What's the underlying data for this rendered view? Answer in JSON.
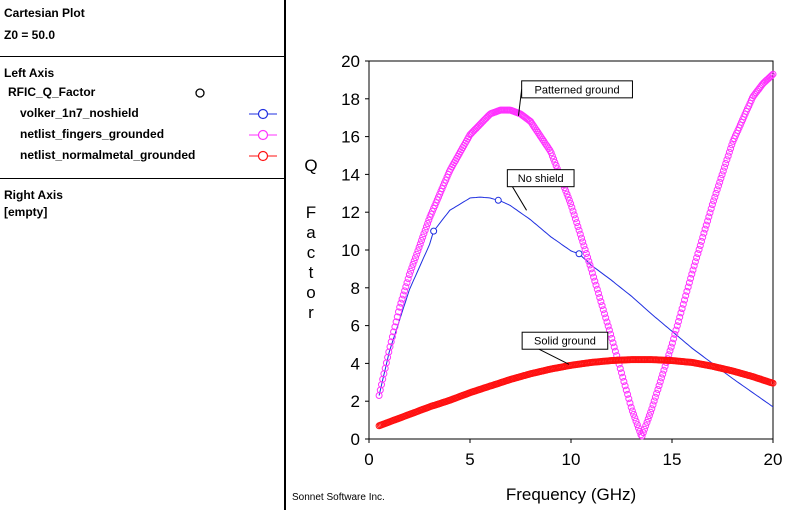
{
  "panel": {
    "plot_type": "Cartesian Plot",
    "z0": "Z0 = 50.0",
    "left_axis_header": "Left Axis",
    "param_name": "RFIC_Q_Factor",
    "traces": [
      {
        "label": "volker_1n7_noshield",
        "color": "#1f2fe0"
      },
      {
        "label": "netlist_fingers_grounded",
        "color": "#ff33ff"
      },
      {
        "label": "netlist_normalmetal_grounded",
        "color": "#ff1111"
      }
    ],
    "right_axis_header": "Right Axis",
    "right_axis_value": "[empty]"
  },
  "footer": "Sonnet Software Inc.",
  "chart_data": {
    "type": "line",
    "xlabel": "Frequency (GHz)",
    "ylabel": "Q Factor",
    "xlim": [
      0,
      20
    ],
    "ylim": [
      0,
      20
    ],
    "xticks": [
      0,
      5,
      10,
      15,
      20
    ],
    "yticks": [
      0,
      2,
      4,
      6,
      8,
      10,
      12,
      14,
      16,
      18,
      20
    ],
    "grid": false,
    "series": [
      {
        "name": "volker_1n7_noshield",
        "color": "#1f2fe0",
        "x": [
          0.5,
          1,
          2,
          3,
          3.2,
          4,
          5,
          5.5,
          6,
          6.5,
          7,
          8,
          9,
          10,
          10.4,
          11,
          12,
          13,
          14,
          15,
          16,
          17,
          18,
          19,
          20
        ],
        "y": [
          2.3,
          4.6,
          7.9,
          10.3,
          11.0,
          12.1,
          12.75,
          12.8,
          12.75,
          12.6,
          12.35,
          11.6,
          10.7,
          9.95,
          9.8,
          9.2,
          8.4,
          7.55,
          6.6,
          5.7,
          4.8,
          4.0,
          3.2,
          2.45,
          1.7
        ],
        "markers_x": [
          3.2,
          6.4,
          10.4
        ]
      },
      {
        "name": "netlist_fingers_grounded",
        "color": "#ff33ff",
        "x": [
          0.5,
          1,
          1.5,
          2,
          3,
          4,
          5,
          6,
          6.5,
          7,
          7.5,
          8,
          9,
          10,
          11,
          12,
          12.5,
          13,
          13.5,
          14,
          14.5,
          15,
          15.5,
          16,
          17,
          18,
          19,
          19.5,
          20
        ],
        "y": [
          2.3,
          4.7,
          6.9,
          8.7,
          11.7,
          14.2,
          16.1,
          17.2,
          17.4,
          17.4,
          17.2,
          16.8,
          15.2,
          12.4,
          9.0,
          5.4,
          3.5,
          1.6,
          0.1,
          1.6,
          3.3,
          5.0,
          6.9,
          8.8,
          12.4,
          15.7,
          18.1,
          18.8,
          19.3
        ]
      },
      {
        "name": "netlist_normalmetal_grounded",
        "color": "#ff1111",
        "x": [
          0.5,
          1,
          2,
          3,
          4,
          5,
          6,
          7,
          8,
          9,
          10,
          11,
          12,
          13,
          14,
          15,
          16,
          17,
          18,
          19,
          20
        ],
        "y": [
          0.7,
          0.9,
          1.3,
          1.7,
          2.05,
          2.45,
          2.8,
          3.15,
          3.45,
          3.7,
          3.9,
          4.05,
          4.15,
          4.2,
          4.2,
          4.15,
          4.05,
          3.85,
          3.6,
          3.3,
          2.95
        ]
      }
    ],
    "annotations": [
      {
        "text": "Patterned ground",
        "x": 10.3,
        "y": 18.5,
        "arrow_to": [
          7.4,
          17.1
        ]
      },
      {
        "text": "No shield",
        "x": 8.5,
        "y": 13.8,
        "arrow_to": [
          7.8,
          12.1
        ]
      },
      {
        "text": "Solid ground",
        "x": 9.7,
        "y": 5.2,
        "arrow_to": [
          9.9,
          3.95
        ]
      }
    ]
  }
}
